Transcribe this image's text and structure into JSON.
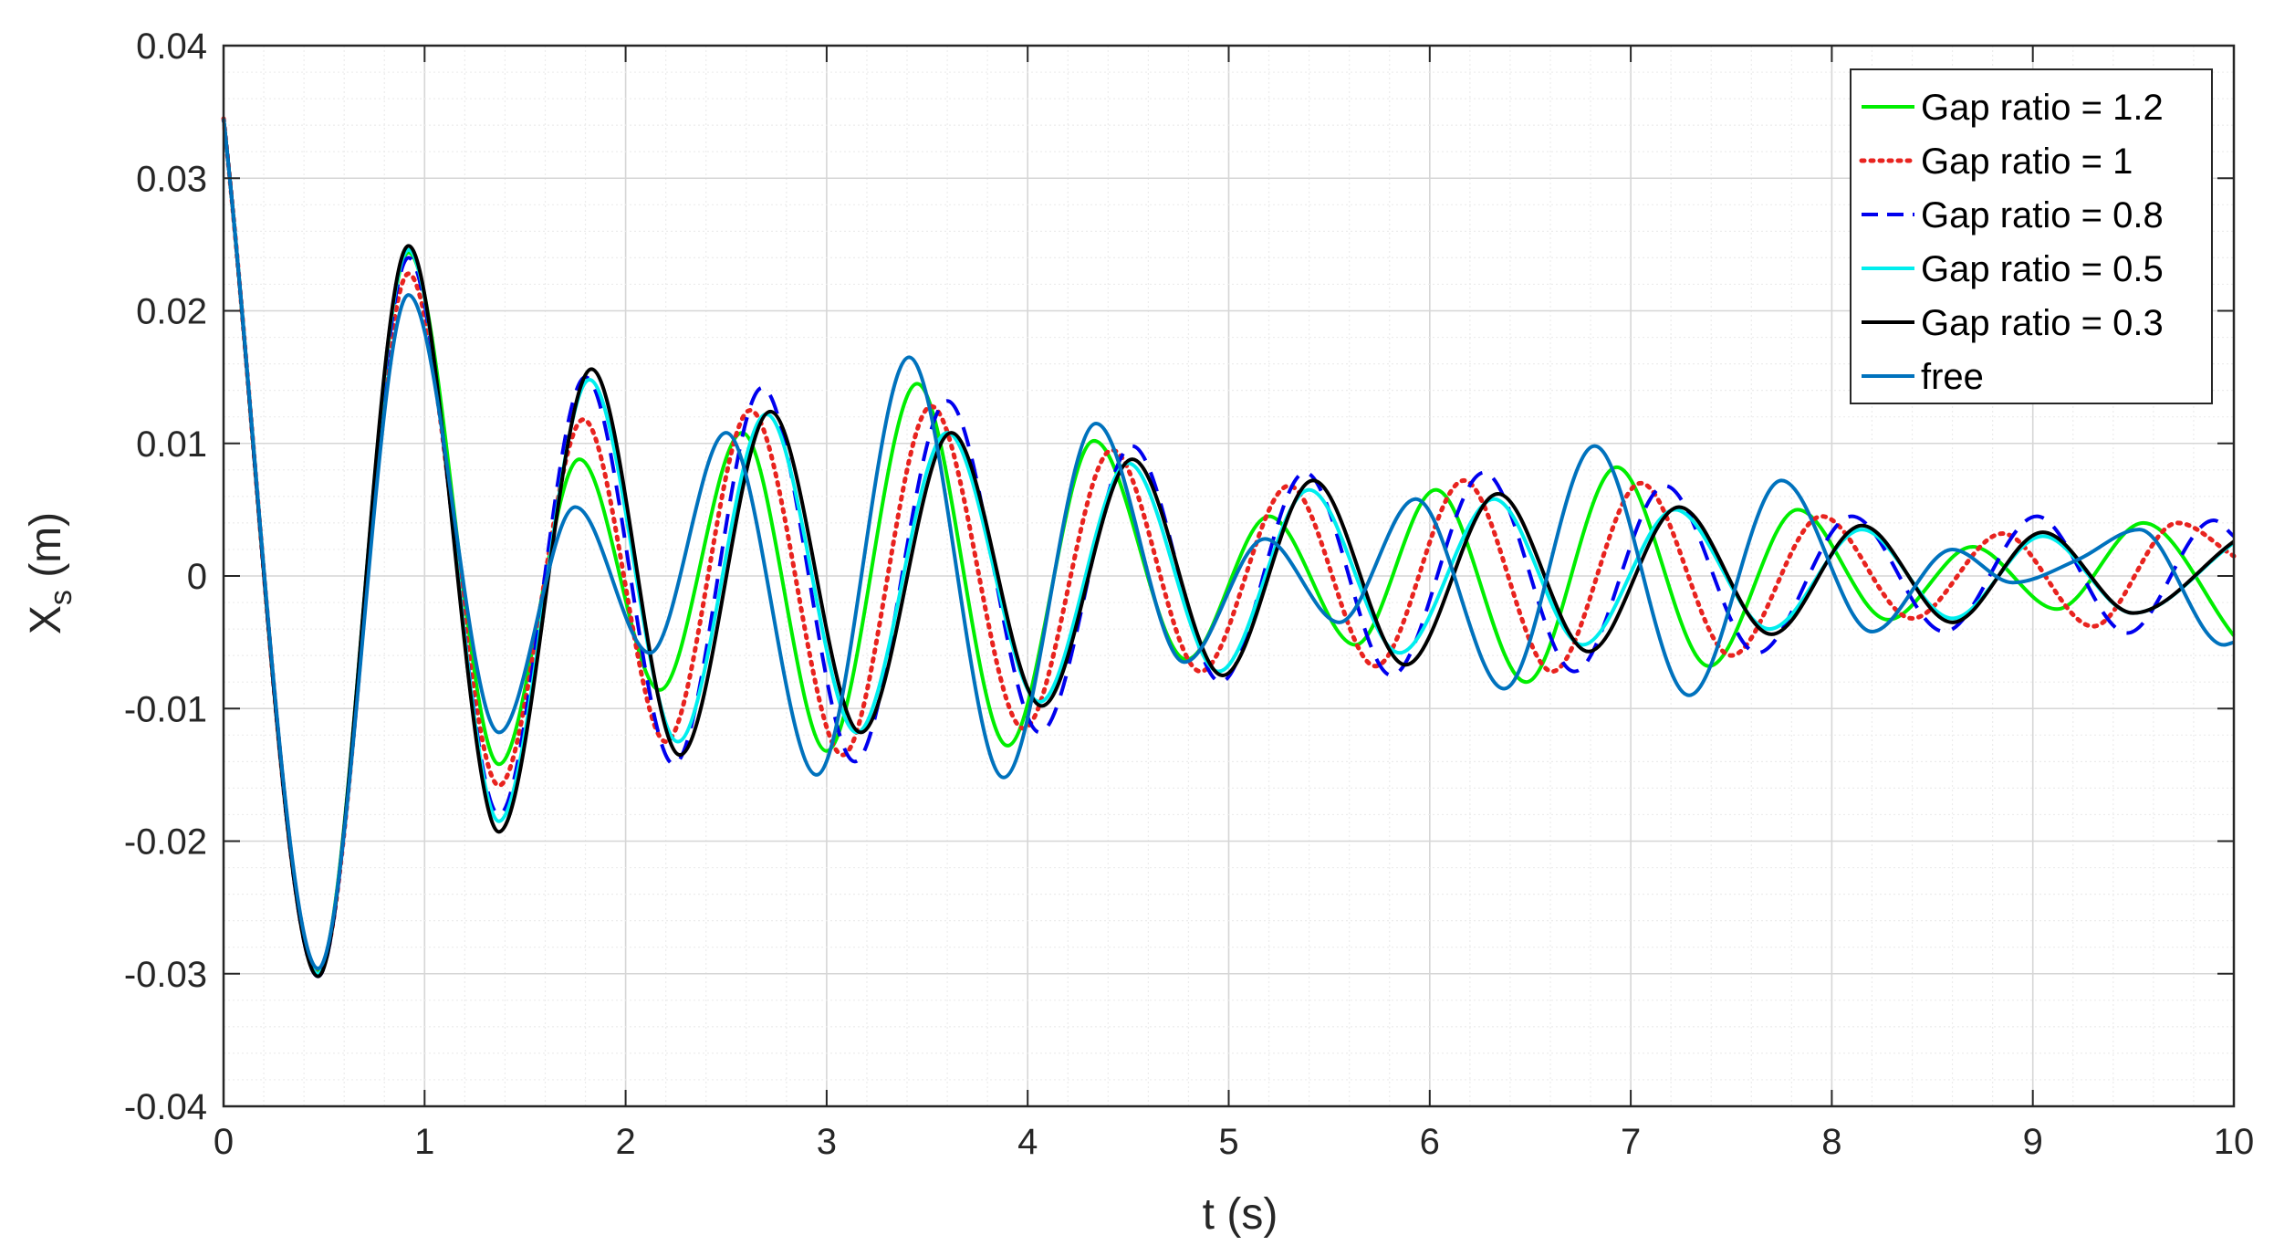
{
  "chart_data": {
    "type": "line",
    "xlabel": "t (s)",
    "ylabel_main": "X",
    "ylabel_sub": "s",
    "ylabel_unit": "(m)",
    "xlim": [
      0,
      10
    ],
    "ylim": [
      -0.04,
      0.04
    ],
    "x_ticks": [
      "0",
      "1",
      "2",
      "3",
      "4",
      "5",
      "6",
      "7",
      "8",
      "9",
      "10"
    ],
    "y_ticks": [
      "-0.04",
      "-0.03",
      "-0.02",
      "-0.01",
      "0",
      "0.01",
      "0.02",
      "0.03",
      "0.04"
    ],
    "grid": "major and minor",
    "legend_position": "top-right",
    "series": [
      {
        "name": "Gap ratio = 1.2",
        "color": "#00ee00",
        "style": "solid",
        "points": [
          [
            0,
            0.0345
          ],
          [
            0.47,
            -0.0298
          ],
          [
            0.92,
            0.0244
          ],
          [
            1.37,
            -0.0142
          ],
          [
            1.77,
            0.0088
          ],
          [
            2.17,
            -0.0086
          ],
          [
            2.58,
            0.0108
          ],
          [
            3.0,
            -0.0132
          ],
          [
            3.45,
            0.0145
          ],
          [
            3.9,
            -0.0128
          ],
          [
            4.33,
            0.0102
          ],
          [
            4.79,
            -0.0063
          ],
          [
            5.2,
            0.0045
          ],
          [
            5.63,
            -0.0052
          ],
          [
            6.03,
            0.0065
          ],
          [
            6.48,
            -0.008
          ],
          [
            6.93,
            0.0082
          ],
          [
            7.39,
            -0.0068
          ],
          [
            7.83,
            0.005
          ],
          [
            8.28,
            -0.0033
          ],
          [
            8.7,
            0.0022
          ],
          [
            9.12,
            -0.0025
          ],
          [
            9.55,
            0.004
          ],
          [
            10.0,
            -0.0045
          ]
        ]
      },
      {
        "name": "Gap ratio = 1",
        "color": "#e8231f",
        "style": "dotted",
        "points": [
          [
            0,
            0.0345
          ],
          [
            0.47,
            -0.03
          ],
          [
            0.92,
            0.0228
          ],
          [
            1.37,
            -0.0158
          ],
          [
            1.79,
            0.0118
          ],
          [
            2.2,
            -0.0125
          ],
          [
            2.62,
            0.0125
          ],
          [
            3.08,
            -0.0135
          ],
          [
            3.52,
            0.0128
          ],
          [
            3.98,
            -0.0115
          ],
          [
            4.42,
            0.0095
          ],
          [
            4.86,
            -0.0072
          ],
          [
            5.3,
            0.0068
          ],
          [
            5.73,
            -0.0068
          ],
          [
            6.17,
            0.0072
          ],
          [
            6.61,
            -0.0072
          ],
          [
            7.05,
            0.007
          ],
          [
            7.5,
            -0.006
          ],
          [
            7.95,
            0.0045
          ],
          [
            8.4,
            -0.0032
          ],
          [
            8.85,
            0.0032
          ],
          [
            9.3,
            -0.0038
          ],
          [
            9.72,
            0.004
          ],
          [
            10.0,
            0.0015
          ]
        ]
      },
      {
        "name": "Gap ratio = 0.8",
        "color": "#0000ee",
        "style": "dashed",
        "points": [
          [
            0,
            0.0345
          ],
          [
            0.47,
            -0.0302
          ],
          [
            0.92,
            0.024
          ],
          [
            1.37,
            -0.018
          ],
          [
            1.8,
            0.015
          ],
          [
            2.24,
            -0.0142
          ],
          [
            2.68,
            0.0142
          ],
          [
            3.14,
            -0.014
          ],
          [
            3.6,
            0.0132
          ],
          [
            4.06,
            -0.0118
          ],
          [
            4.52,
            0.0098
          ],
          [
            4.96,
            -0.008
          ],
          [
            5.38,
            0.0078
          ],
          [
            5.81,
            -0.0075
          ],
          [
            6.27,
            0.0078
          ],
          [
            6.72,
            -0.0072
          ],
          [
            7.17,
            0.0068
          ],
          [
            7.63,
            -0.0058
          ],
          [
            8.1,
            0.0045
          ],
          [
            8.56,
            -0.0042
          ],
          [
            9.02,
            0.0045
          ],
          [
            9.47,
            -0.0043
          ],
          [
            9.9,
            0.0042
          ],
          [
            10.0,
            0.003
          ]
        ]
      },
      {
        "name": "Gap ratio = 0.5",
        "color": "#00eeee",
        "style": "solid",
        "points": [
          [
            0,
            0.0345
          ],
          [
            0.47,
            -0.03
          ],
          [
            0.92,
            0.0246
          ],
          [
            1.37,
            -0.0185
          ],
          [
            1.82,
            0.0148
          ],
          [
            2.26,
            -0.0125
          ],
          [
            2.7,
            0.0122
          ],
          [
            3.15,
            -0.0118
          ],
          [
            3.6,
            0.0108
          ],
          [
            4.06,
            -0.0095
          ],
          [
            4.5,
            0.0085
          ],
          [
            4.95,
            -0.0072
          ],
          [
            5.4,
            0.0065
          ],
          [
            5.85,
            -0.0058
          ],
          [
            6.32,
            0.0058
          ],
          [
            6.76,
            -0.0052
          ],
          [
            7.22,
            0.005
          ],
          [
            7.69,
            -0.004
          ],
          [
            8.15,
            0.0035
          ],
          [
            8.6,
            -0.0032
          ],
          [
            9.05,
            0.003
          ],
          [
            9.5,
            -0.0028
          ],
          [
            10.0,
            0.0025
          ]
        ]
      },
      {
        "name": "Gap ratio = 0.3",
        "color": "#000000",
        "style": "solid",
        "points": [
          [
            0,
            0.0345
          ],
          [
            0.47,
            -0.0302
          ],
          [
            0.92,
            0.0249
          ],
          [
            1.37,
            -0.0193
          ],
          [
            1.83,
            0.0156
          ],
          [
            2.27,
            -0.0135
          ],
          [
            2.72,
            0.0124
          ],
          [
            3.17,
            -0.0118
          ],
          [
            3.62,
            0.0108
          ],
          [
            4.07,
            -0.0098
          ],
          [
            4.52,
            0.0088
          ],
          [
            4.97,
            -0.0075
          ],
          [
            5.42,
            0.0072
          ],
          [
            5.88,
            -0.0067
          ],
          [
            6.34,
            0.0062
          ],
          [
            6.79,
            -0.0057
          ],
          [
            7.24,
            0.0052
          ],
          [
            7.7,
            -0.0044
          ],
          [
            8.15,
            0.0038
          ],
          [
            8.6,
            -0.0035
          ],
          [
            9.05,
            0.0033
          ],
          [
            9.5,
            -0.0028
          ],
          [
            10.0,
            0.0026
          ]
        ]
      },
      {
        "name": "free",
        "color": "#0072bd",
        "style": "solid",
        "points": [
          [
            0,
            0.0345
          ],
          [
            0.47,
            -0.0296
          ],
          [
            0.92,
            0.0212
          ],
          [
            1.37,
            -0.0118
          ],
          [
            1.75,
            0.0052
          ],
          [
            2.12,
            -0.0058
          ],
          [
            2.5,
            0.0108
          ],
          [
            2.95,
            -0.015
          ],
          [
            3.41,
            0.0165
          ],
          [
            3.88,
            -0.0152
          ],
          [
            4.34,
            0.0115
          ],
          [
            4.78,
            -0.0065
          ],
          [
            5.18,
            0.0028
          ],
          [
            5.55,
            -0.0035
          ],
          [
            5.93,
            0.0058
          ],
          [
            6.37,
            -0.0085
          ],
          [
            6.82,
            0.0098
          ],
          [
            7.29,
            -0.009
          ],
          [
            7.75,
            0.0072
          ],
          [
            8.2,
            -0.0042
          ],
          [
            8.6,
            0.002
          ],
          [
            8.9,
            -0.0005
          ],
          [
            9.22,
            0.0012
          ],
          [
            9.53,
            0.0035
          ],
          [
            9.95,
            -0.0052
          ],
          [
            10.0,
            -0.005
          ]
        ]
      }
    ]
  }
}
